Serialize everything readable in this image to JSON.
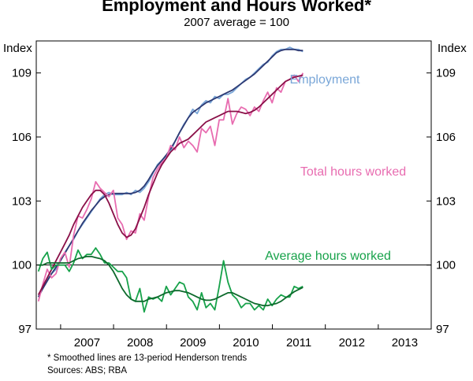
{
  "chart_data": {
    "type": "line",
    "title": "Employment and Hours Worked*",
    "subtitle": "2007 average = 100",
    "ylabel_left": "Index",
    "ylabel_right": "Index",
    "ylim": [
      97,
      110.5
    ],
    "yticks": [
      97,
      100,
      103,
      106,
      109
    ],
    "xlim": [
      2006.54,
      2014.0
    ],
    "xticks": [
      "2007",
      "2008",
      "2009",
      "2010",
      "2011",
      "2012",
      "2013"
    ],
    "grid": false,
    "reference_line": 100,
    "series": [
      {
        "name": "Employment",
        "color": "#7aa7d8",
        "trend_color": "#2e3a73",
        "start": 2006.58,
        "step": 0.0833,
        "values": [
          98.5,
          98.9,
          99.3,
          99.6,
          99.8,
          100.2,
          100.6,
          100.9,
          101.2,
          101.6,
          101.9,
          102.2,
          102.5,
          102.8,
          103.1,
          103.3,
          103.4,
          103.3,
          103.3,
          103.3,
          103.4,
          103.3,
          103.5,
          103.4,
          103.6,
          103.9,
          104.3,
          104.7,
          104.9,
          105.1,
          105.3,
          105.8,
          106.2,
          106.6,
          106.9,
          107.3,
          107.1,
          107.5,
          107.7,
          107.6,
          107.9,
          107.8,
          108.0,
          108.0,
          108.1,
          108.3,
          108.5,
          108.7,
          108.8,
          109.0,
          109.2,
          109.4,
          109.5,
          109.8,
          110.0,
          110.1,
          110.1,
          110.2,
          110.1,
          110.1,
          110.0
        ],
        "trend": [
          98.5,
          98.9,
          99.25,
          99.6,
          99.9,
          100.2,
          100.55,
          100.9,
          101.25,
          101.6,
          101.95,
          102.25,
          102.55,
          102.8,
          103.05,
          103.2,
          103.3,
          103.35,
          103.35,
          103.35,
          103.35,
          103.35,
          103.4,
          103.5,
          103.7,
          104.0,
          104.35,
          104.65,
          104.9,
          105.15,
          105.45,
          105.8,
          106.2,
          106.55,
          106.9,
          107.15,
          107.3,
          107.45,
          107.6,
          107.7,
          107.8,
          107.9,
          108.0,
          108.1,
          108.2,
          108.35,
          108.5,
          108.65,
          108.8,
          108.95,
          109.15,
          109.35,
          109.55,
          109.75,
          109.95,
          110.05,
          110.1,
          110.1,
          110.1,
          110.05,
          110.05
        ]
      },
      {
        "name": "Total hours worked",
        "color": "#e86cb0",
        "trend_color": "#8a1048",
        "start": 2006.58,
        "step": 0.0833,
        "values": [
          98.3,
          99.1,
          99.8,
          99.4,
          99.6,
          100.3,
          100.6,
          99.9,
          101.4,
          102.3,
          102.2,
          102.6,
          103.1,
          103.9,
          103.6,
          103.4,
          103.2,
          103.5,
          102.2,
          101.9,
          101.2,
          101.6,
          101.5,
          102.4,
          102.1,
          103.2,
          104.1,
          104.5,
          104.8,
          105.0,
          105.6,
          105.4,
          106.0,
          105.5,
          105.8,
          105.6,
          105.3,
          106.4,
          106.2,
          106.5,
          105.6,
          106.8,
          106.8,
          107.8,
          106.6,
          107.1,
          107.4,
          107.3,
          107.0,
          107.4,
          107.2,
          107.7,
          108.1,
          107.6,
          108.3,
          108.1,
          108.6,
          108.7,
          108.9,
          108.6,
          109.0
        ],
        "trend": [
          98.6,
          99.0,
          99.4,
          99.8,
          100.2,
          100.6,
          101.0,
          101.4,
          101.9,
          102.3,
          102.7,
          103.0,
          103.3,
          103.5,
          103.5,
          103.3,
          102.9,
          102.4,
          101.9,
          101.5,
          101.3,
          101.4,
          101.7,
          102.2,
          102.7,
          103.3,
          103.8,
          104.3,
          104.7,
          105.0,
          105.3,
          105.5,
          105.7,
          105.8,
          105.9,
          106.1,
          106.3,
          106.5,
          106.7,
          106.8,
          106.9,
          107.0,
          107.1,
          107.2,
          107.2,
          107.2,
          107.15,
          107.1,
          107.15,
          107.25,
          107.4,
          107.6,
          107.8,
          108.0,
          108.2,
          108.4,
          108.6,
          108.7,
          108.8,
          108.85,
          108.9
        ]
      },
      {
        "name": "Average hours worked",
        "color": "#17a24a",
        "trend_color": "#0d6a2c",
        "start": 2006.58,
        "step": 0.0833,
        "values": [
          99.7,
          100.3,
          100.6,
          99.8,
          100.0,
          100.0,
          100.0,
          99.7,
          100.1,
          100.7,
          100.3,
          100.5,
          100.5,
          100.8,
          100.5,
          100.1,
          100.1,
          99.9,
          99.7,
          99.7,
          99.4,
          98.4,
          98.3,
          98.9,
          97.8,
          98.5,
          98.4,
          98.5,
          98.3,
          99.0,
          98.6,
          98.9,
          99.2,
          99.1,
          98.5,
          98.3,
          97.9,
          98.7,
          98.0,
          98.2,
          97.9,
          99.0,
          100.2,
          99.2,
          98.6,
          98.4,
          98.0,
          98.2,
          98.2,
          97.9,
          98.1,
          97.9,
          98.4,
          98.1,
          98.4,
          98.6,
          98.5,
          98.5,
          99.0,
          98.9,
          99.0
        ],
        "trend": [
          100.0,
          100.0,
          100.1,
          100.1,
          100.1,
          100.1,
          100.1,
          100.1,
          100.2,
          100.3,
          100.35,
          100.4,
          100.4,
          100.35,
          100.3,
          100.2,
          100.0,
          99.7,
          99.3,
          98.9,
          98.6,
          98.4,
          98.3,
          98.3,
          98.3,
          98.4,
          98.45,
          98.5,
          98.6,
          98.7,
          98.75,
          98.8,
          98.8,
          98.75,
          98.7,
          98.6,
          98.5,
          98.4,
          98.35,
          98.35,
          98.4,
          98.5,
          98.6,
          98.7,
          98.7,
          98.6,
          98.5,
          98.4,
          98.3,
          98.2,
          98.15,
          98.1,
          98.1,
          98.15,
          98.2,
          98.3,
          98.45,
          98.6,
          98.75,
          98.85,
          98.95
        ]
      }
    ],
    "annotations": [
      "Employment",
      "Total hours worked",
      "Average hours worked"
    ]
  },
  "footnote": "*    Smoothed lines are 13-period Henderson trends",
  "sources": "Sources: ABS; RBA"
}
